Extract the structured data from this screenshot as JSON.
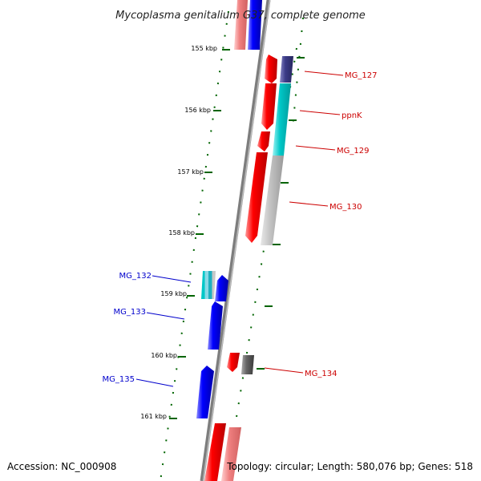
{
  "title": "Mycoplasma genitalium G37, complete genome",
  "accession_label": "Accession: NC_000908",
  "topology_label": "Topology: circular; Length: 580,076 bp; Genes: 518",
  "scale_ticks": [
    "155 kbp",
    "156 kbp",
    "157 kbp",
    "158 kbp",
    "159 kbp",
    "160 kbp",
    "161 kbp"
  ],
  "gene_labels": {
    "mg127": "MG_127",
    "ppnk": "ppnK",
    "mg129": "MG_129",
    "mg130": "MG_130",
    "mg132": "MG_132",
    "mg133": "MG_133",
    "mg134": "MG_134",
    "mg135": "MG_135"
  },
  "colors": {
    "forward_strand": "#ff0000",
    "reverse_strand": "#0000ff",
    "backbone": "#808080",
    "tick_marks": "#006400",
    "forward_label": "#cc0000",
    "reverse_label": "#0000cc"
  }
}
